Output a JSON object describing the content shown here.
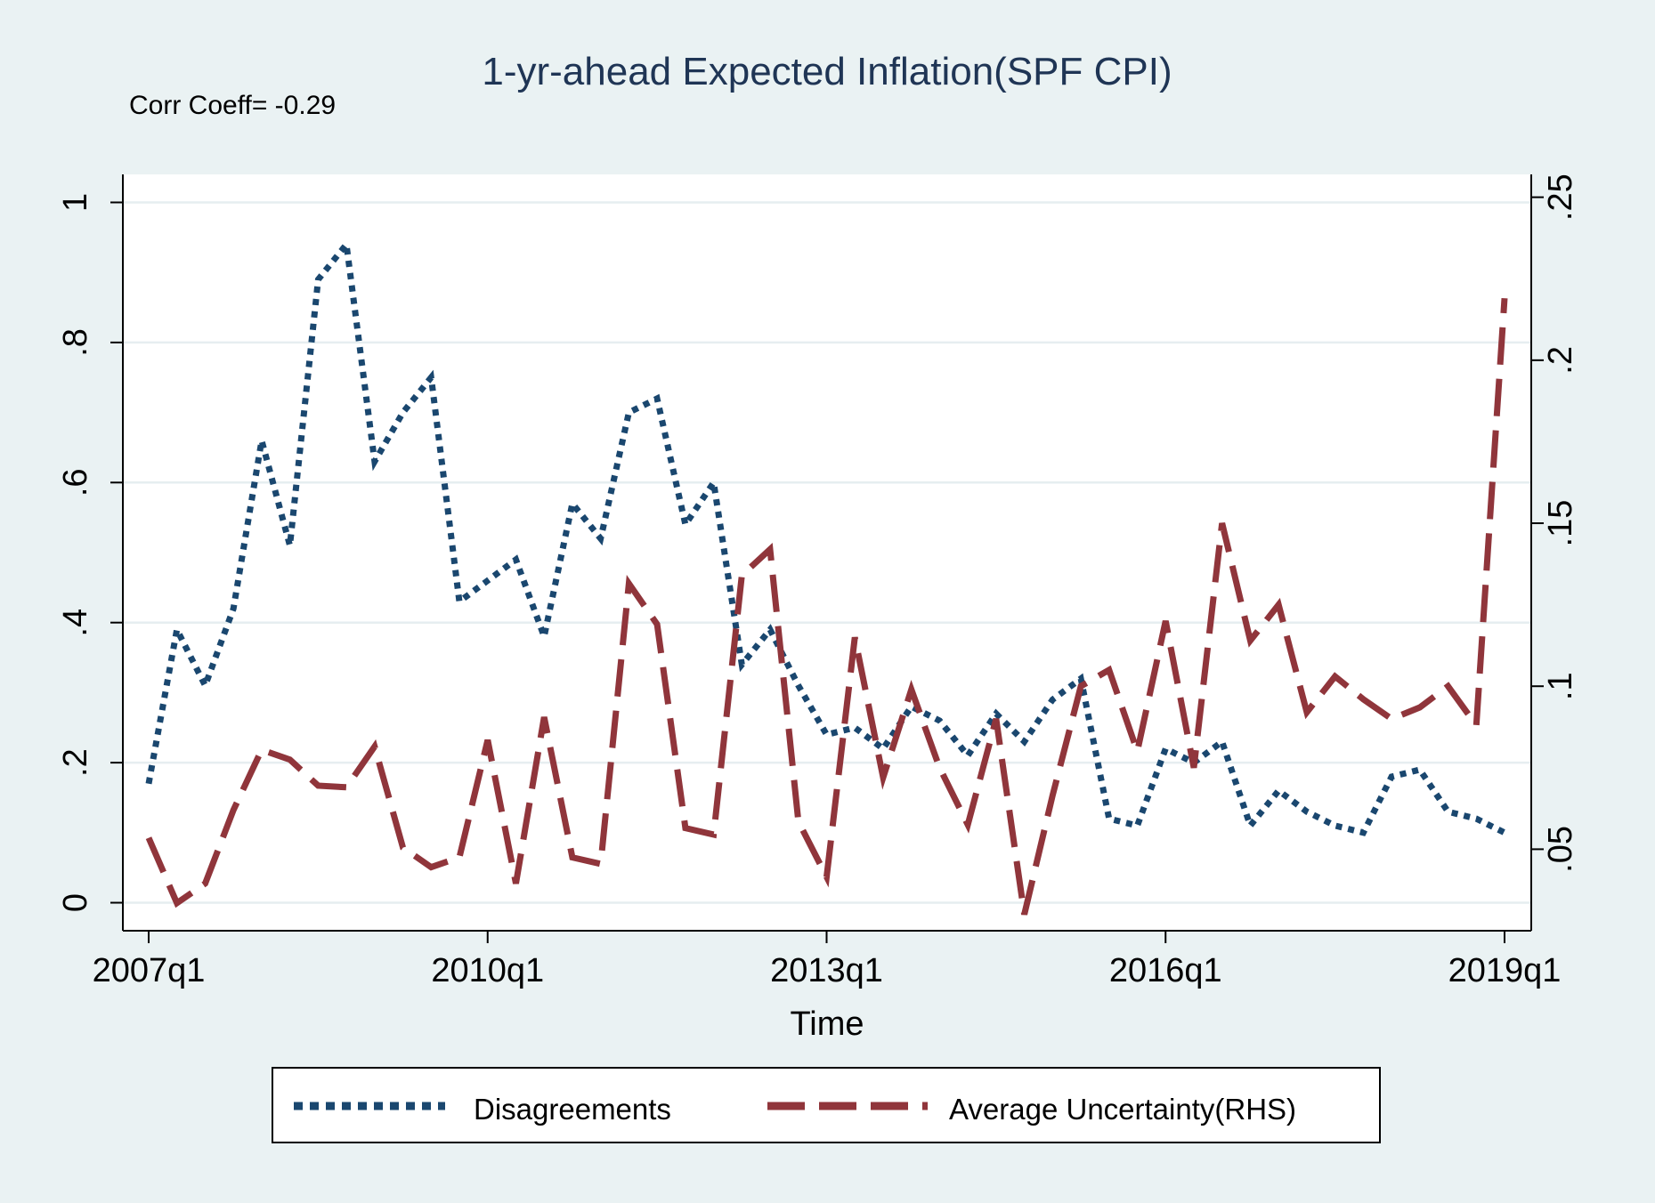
{
  "chart_data": {
    "type": "line",
    "title": "1-yr-ahead Expected Inflation(SPF CPI)",
    "annotation": "Corr Coeff= -0.29",
    "xlabel": "Time",
    "ylabel": "",
    "y2label": "",
    "x_ticks": [
      "2007q1",
      "2010q1",
      "2013q1",
      "2016q1",
      "2019q1"
    ],
    "x_tick_positions": [
      0,
      12,
      24,
      36,
      48
    ],
    "y_ticks": [
      "0",
      ".2",
      ".4",
      ".6",
      ".8",
      "1"
    ],
    "y_tick_values": [
      0,
      0.2,
      0.4,
      0.6,
      0.8,
      1
    ],
    "y2_ticks": [
      ".05",
      ".1",
      ".15",
      ".2",
      ".25"
    ],
    "y2_tick_values": [
      0.05,
      0.1,
      0.15,
      0.2,
      0.25
    ],
    "ylim": [
      -0.04,
      1.04
    ],
    "y2lim": [
      0.025,
      0.257
    ],
    "grid": true,
    "legend_position": "bottom",
    "x": [
      0,
      1,
      2,
      3,
      4,
      5,
      6,
      7,
      8,
      9,
      10,
      11,
      12,
      13,
      14,
      15,
      16,
      17,
      18,
      19,
      20,
      21,
      22,
      23,
      24,
      25,
      26,
      27,
      28,
      29,
      30,
      31,
      32,
      33,
      34,
      35,
      36,
      37,
      38,
      39,
      40,
      41,
      42,
      43,
      44,
      45,
      46,
      47,
      48
    ],
    "series": [
      {
        "name": "Disagreements",
        "axis": "left",
        "color": "#1a476f",
        "style": "dotted",
        "values": [
          0.17,
          0.39,
          0.31,
          0.42,
          0.66,
          0.51,
          0.89,
          0.94,
          0.63,
          0.7,
          0.75,
          0.43,
          0.46,
          0.49,
          0.38,
          0.57,
          0.52,
          0.7,
          0.72,
          0.54,
          0.6,
          0.34,
          0.39,
          0.31,
          0.24,
          0.25,
          0.22,
          0.28,
          0.26,
          0.21,
          0.27,
          0.23,
          0.29,
          0.32,
          0.12,
          0.11,
          0.22,
          0.2,
          0.23,
          0.11,
          0.16,
          0.13,
          0.11,
          0.1,
          0.18,
          0.19,
          0.13,
          0.12,
          0.1
        ]
      },
      {
        "name": "Average Uncertainty(RHS)",
        "axis": "right",
        "color": "#90353b",
        "style": "dashed",
        "values": [
          0.0535,
          0.0335,
          0.0395,
          0.062,
          0.0805,
          0.0775,
          0.0695,
          0.069,
          0.0815,
          0.0505,
          0.0445,
          0.0475,
          0.0835,
          0.0395,
          0.0905,
          0.0475,
          0.0455,
          0.1315,
          0.119,
          0.0565,
          0.0545,
          0.134,
          0.142,
          0.0585,
          0.0415,
          0.115,
          0.072,
          0.099,
          0.075,
          0.0575,
          0.09,
          0.03,
          0.0665,
          0.1,
          0.105,
          0.08,
          0.12,
          0.075,
          0.15,
          0.114,
          0.125,
          0.092,
          0.103,
          0.096,
          0.09,
          0.0935,
          0.1,
          0.088,
          0.219
        ]
      }
    ]
  }
}
